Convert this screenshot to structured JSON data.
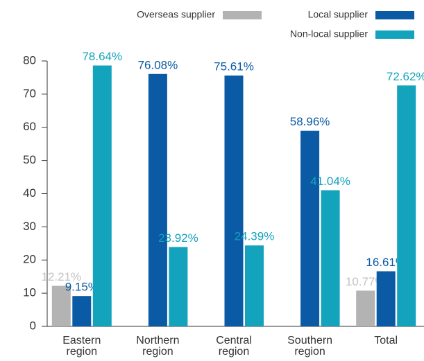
{
  "chart_data": {
    "type": "bar",
    "categories": [
      "Eastern region",
      "Northern region",
      "Central region",
      "Southern region",
      "Total"
    ],
    "series": [
      {
        "name": "Overseas supplier",
        "color": "#b3b3b3",
        "values": [
          12.21,
          null,
          null,
          null,
          10.77
        ],
        "value_labels": [
          "12.21%",
          null,
          null,
          null,
          "10.77%"
        ]
      },
      {
        "name": "Local supplier",
        "color": "#0a5aa5",
        "values": [
          9.15,
          76.08,
          75.61,
          58.96,
          16.61
        ],
        "value_labels": [
          "9.15%",
          "76.08%",
          "75.61%",
          "58.96%",
          "16.61%"
        ]
      },
      {
        "name": "Non-local supplier",
        "color": "#14a3bd",
        "values": [
          78.64,
          23.92,
          24.39,
          41.04,
          72.62
        ],
        "value_labels": [
          "78.64%",
          "23.92%",
          "24.39%",
          "41.04%",
          "72.62%"
        ]
      }
    ],
    "ylim": [
      0,
      80
    ],
    "yticks": [
      0,
      10,
      20,
      30,
      40,
      50,
      60,
      70,
      80
    ]
  }
}
